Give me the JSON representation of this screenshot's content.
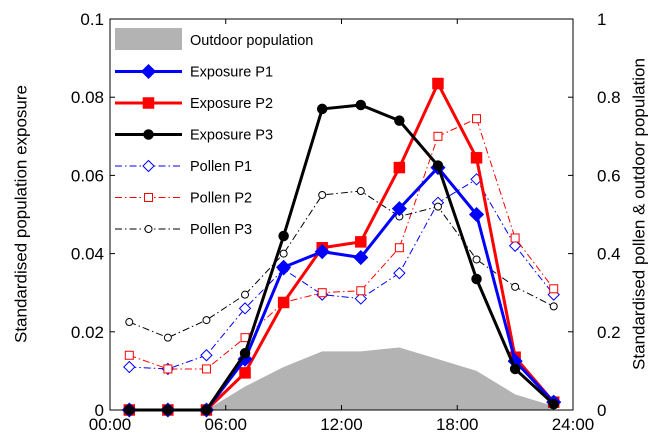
{
  "chart_data": {
    "type": "line",
    "title": "",
    "xlabel": "",
    "ylabel_left": "Standardised population exposure",
    "ylabel_right": "Standardised pollen & outdoor population",
    "xlim": [
      0,
      24
    ],
    "ylim_left": [
      0,
      0.1
    ],
    "ylim_right": [
      0,
      1
    ],
    "x_ticks": [
      0,
      6,
      12,
      18,
      24
    ],
    "x_tick_labels": [
      "00:00",
      "06:00",
      "12:00",
      "18:00",
      "24:00"
    ],
    "y_left_ticks": [
      0,
      0.02,
      0.04,
      0.06,
      0.08,
      0.1
    ],
    "y_left_tick_labels": [
      "0",
      "0.02",
      "0.04",
      "0.06",
      "0.08",
      "0.1"
    ],
    "y_right_ticks": [
      0,
      0.2,
      0.4,
      0.6,
      0.8,
      1
    ],
    "y_right_tick_labels": [
      "0",
      "0.2",
      "0.4",
      "0.6",
      "0.8",
      "1"
    ],
    "legend_position": "top-left",
    "area": {
      "name": "Outdoor population",
      "axis": "right",
      "color": "#b3b3b3",
      "x": [
        5,
        7,
        9,
        11,
        13,
        15,
        17,
        19,
        21,
        23
      ],
      "y": [
        0,
        0.06,
        0.11,
        0.15,
        0.15,
        0.16,
        0.13,
        0.1,
        0.04,
        0.01
      ]
    },
    "series": [
      {
        "name": "Exposure P1",
        "axis": "left",
        "color": "#0000ff",
        "dash": "solid",
        "marker": "diamond",
        "filled": true,
        "x": [
          1,
          3,
          5,
          7,
          9,
          11,
          13,
          15,
          17,
          19,
          21,
          23
        ],
        "y": [
          0,
          0,
          0,
          0.013,
          0.0365,
          0.0405,
          0.039,
          0.0515,
          0.062,
          0.05,
          0.0125,
          0.002
        ]
      },
      {
        "name": "Exposure P2",
        "axis": "left",
        "color": "#ff0000",
        "dash": "solid",
        "marker": "square",
        "filled": true,
        "x": [
          1,
          3,
          5,
          7,
          9,
          11,
          13,
          15,
          17,
          19,
          21,
          23
        ],
        "y": [
          0,
          0,
          0,
          0.0095,
          0.0275,
          0.0415,
          0.043,
          0.062,
          0.0835,
          0.0645,
          0.0135,
          0.002
        ]
      },
      {
        "name": "Exposure P3",
        "axis": "left",
        "color": "#000000",
        "dash": "solid",
        "marker": "circle",
        "filled": true,
        "x": [
          1,
          3,
          5,
          7,
          9,
          11,
          13,
          15,
          17,
          19,
          21,
          23
        ],
        "y": [
          0,
          0,
          0,
          0.0145,
          0.0445,
          0.077,
          0.078,
          0.074,
          0.0625,
          0.0335,
          0.0105,
          0.0015
        ]
      },
      {
        "name": "Pollen P1",
        "axis": "right",
        "color": "#0000ff",
        "dash": "dashdot",
        "marker": "diamond",
        "filled": false,
        "x": [
          1,
          3,
          5,
          7,
          9,
          11,
          13,
          15,
          17,
          19,
          21,
          23
        ],
        "y": [
          0.11,
          0.105,
          0.14,
          0.26,
          0.36,
          0.295,
          0.285,
          0.35,
          0.53,
          0.59,
          0.42,
          0.295
        ]
      },
      {
        "name": "Pollen P2",
        "axis": "right",
        "color": "#ff0000",
        "dash": "dashdot",
        "marker": "square",
        "filled": false,
        "x": [
          1,
          3,
          5,
          7,
          9,
          11,
          13,
          15,
          17,
          19,
          21,
          23
        ],
        "y": [
          0.14,
          0.105,
          0.105,
          0.185,
          0.275,
          0.3,
          0.305,
          0.415,
          0.7,
          0.745,
          0.44,
          0.31
        ]
      },
      {
        "name": "Pollen P3",
        "axis": "right",
        "color": "#000000",
        "dash": "dashdot",
        "marker": "circle",
        "filled": false,
        "x": [
          1,
          3,
          5,
          7,
          9,
          11,
          13,
          15,
          17,
          19,
          21,
          23
        ],
        "y": [
          0.225,
          0.185,
          0.23,
          0.295,
          0.4,
          0.55,
          0.56,
          0.495,
          0.52,
          0.385,
          0.315,
          0.265
        ]
      }
    ]
  }
}
